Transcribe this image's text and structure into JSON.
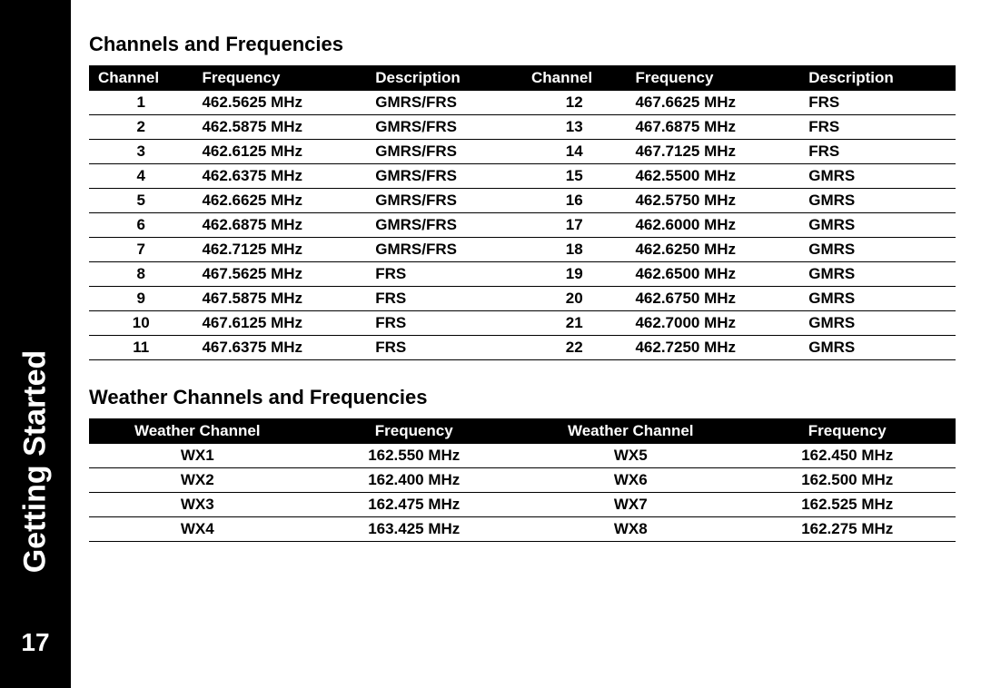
{
  "sidebar": {
    "label": "Getting Started",
    "page_number": "17"
  },
  "sections": {
    "channels_title": "Channels and Frequencies",
    "weather_title": "Weather Channels and Frequencies"
  },
  "channels_table": {
    "headers": [
      "Channel",
      "Frequency",
      "Description",
      "Channel",
      "Frequency",
      "Description"
    ],
    "rows": [
      [
        "1",
        "462.5625 MHz",
        "GMRS/FRS",
        "12",
        "467.6625 MHz",
        "FRS"
      ],
      [
        "2",
        "462.5875 MHz",
        "GMRS/FRS",
        "13",
        "467.6875 MHz",
        "FRS"
      ],
      [
        "3",
        "462.6125 MHz",
        "GMRS/FRS",
        "14",
        "467.7125 MHz",
        "FRS"
      ],
      [
        "4",
        "462.6375 MHz",
        "GMRS/FRS",
        "15",
        "462.5500 MHz",
        "GMRS"
      ],
      [
        "5",
        "462.6625 MHz",
        "GMRS/FRS",
        "16",
        "462.5750 MHz",
        "GMRS"
      ],
      [
        "6",
        "462.6875 MHz",
        "GMRS/FRS",
        "17",
        "462.6000 MHz",
        "GMRS"
      ],
      [
        "7",
        "462.7125 MHz",
        "GMRS/FRS",
        "18",
        "462.6250 MHz",
        "GMRS"
      ],
      [
        "8",
        "467.5625 MHz",
        "FRS",
        "19",
        "462.6500 MHz",
        "GMRS"
      ],
      [
        "9",
        "467.5875 MHz",
        "FRS",
        "20",
        "462.6750 MHz",
        "GMRS"
      ],
      [
        "10",
        "467.6125 MHz",
        "FRS",
        "21",
        "462.7000 MHz",
        "GMRS"
      ],
      [
        "11",
        "467.6375 MHz",
        "FRS",
        "22",
        "462.7250 MHz",
        "GMRS"
      ]
    ]
  },
  "weather_table": {
    "headers": [
      "Weather Channel",
      "Frequency",
      "Weather Channel",
      "Frequency"
    ],
    "rows": [
      [
        "WX1",
        "162.550 MHz",
        "WX5",
        "162.450 MHz"
      ],
      [
        "WX2",
        "162.400 MHz",
        "WX6",
        "162.500 MHz"
      ],
      [
        "WX3",
        "162.475 MHz",
        "WX7",
        "162.525 MHz"
      ],
      [
        "WX4",
        "163.425 MHz",
        "WX8",
        "162.275 MHz"
      ]
    ]
  },
  "styling": {
    "page_bg": "#ffffff",
    "sidebar_bg": "#000000",
    "sidebar_text": "#ffffff",
    "header_bg": "#000000",
    "header_text": "#ffffff",
    "row_border": "#000000",
    "body_font_size_pt": 12,
    "title_font_size_pt": 16,
    "sidebar_font_size_pt": 26,
    "font_weight": 700
  }
}
